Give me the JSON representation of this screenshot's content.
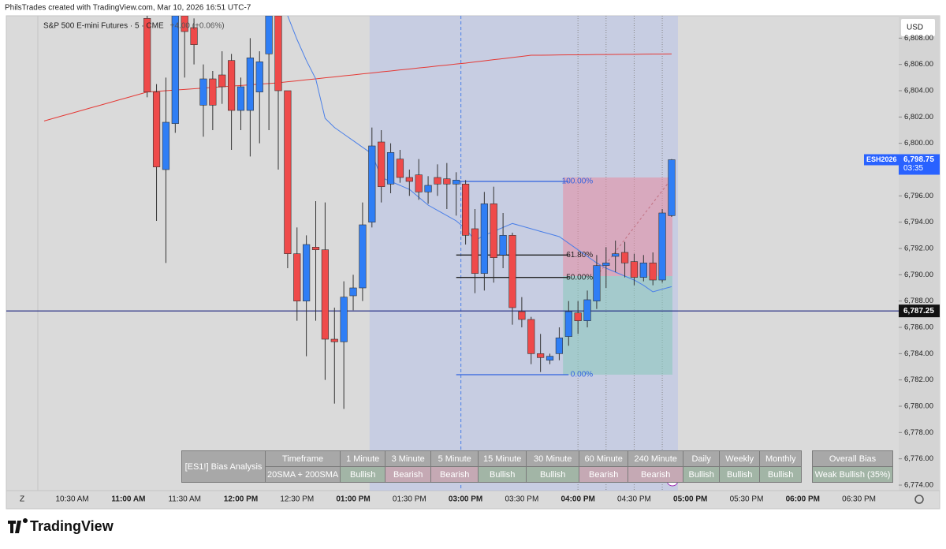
{
  "header": "PhilsTrades created with TradingView.com, Mar 10, 2026 16:51 UTC-7",
  "logo": "TradingView",
  "chart_data": {
    "type": "candlestick",
    "legend_title": "S&P 500 E-mini Futures · 5 · CME",
    "legend_change": "+4.00 (+0.06%)",
    "currency": "USD",
    "timezone_button": "Z",
    "up_color": "#2f7ef5",
    "down_color": "#ef4a4a",
    "categories": [
      null,
      null,
      null,
      "10:30 AM",
      null,
      null,
      null,
      null,
      null,
      "11:00 AM",
      null,
      null,
      null,
      null,
      null,
      "11:30 AM",
      null,
      null,
      null,
      null,
      null,
      "12:00 PM",
      null,
      null,
      null,
      null,
      null,
      "12:30 PM",
      null,
      null,
      null,
      null,
      null,
      "01:00 PM",
      null,
      null,
      null,
      null,
      null,
      "01:30 PM",
      null,
      null,
      null,
      null,
      null,
      "03:00 PM",
      null,
      null,
      null,
      null,
      null,
      "03:30 PM",
      null,
      null,
      null,
      null,
      null,
      "04:00 PM",
      null,
      null,
      null,
      null,
      null,
      "04:30 PM",
      null,
      null,
      null,
      null,
      null,
      "05:00 PM",
      null,
      null,
      null,
      null,
      null,
      "05:30 PM",
      null,
      null,
      null,
      null,
      null,
      "06:00 PM",
      null,
      null,
      null,
      null,
      null,
      "06:30 PM",
      null,
      null,
      null,
      null
    ],
    "open": [
      null,
      null,
      null,
      null,
      null,
      null,
      null,
      null,
      null,
      null,
      null,
      6809.5,
      6803.9,
      6798.0,
      6801.5,
      6809.7,
      6808.8,
      6802.9,
      6804.9,
      6805.2,
      6806.3,
      6802.5,
      6802.5,
      6803.9,
      6806.8,
      6809.7,
      6804.0,
      6791.6,
      6788.0,
      6792.1,
      6791.9,
      6785.1,
      6784.9,
      6788.4,
      6789.0,
      6794.0,
      6800.1,
      6796.9,
      6798.8,
      6797.4,
      6797.6,
      6796.3,
      6797.4,
      6797.3,
      6796.9,
      6796.9,
      6793.5,
      6790.1,
      6795.4,
      6791.5,
      6793.0,
      6787.2,
      6786.6,
      6784.0,
      6783.5,
      6784.0,
      6785.3,
      6787.1,
      6786.5,
      6788.0,
      6790.7,
      6791.4,
      6791.7,
      6791.0,
      6789.8,
      6790.9,
      6789.6,
      6794.5,
      null,
      null,
      null,
      null,
      null,
      null,
      null,
      null,
      null,
      null,
      null,
      null,
      null,
      null,
      null,
      null,
      null,
      null,
      null,
      null,
      null,
      null,
      null,
      null
    ],
    "high": [
      null,
      null,
      null,
      null,
      null,
      null,
      null,
      null,
      null,
      null,
      null,
      6809.7,
      6804.5,
      6805.0,
      6809.7,
      6809.7,
      6809.5,
      6806.0,
      6805.5,
      6807.0,
      6806.8,
      6805.0,
      6808.0,
      6807.0,
      6809.7,
      6809.7,
      6804.0,
      6793.6,
      6793.0,
      6795.6,
      6795.5,
      6787.5,
      6789.5,
      6790.0,
      6795.5,
      6801.2,
      6801.0,
      6800.0,
      6799.5,
      6798.0,
      6798.8,
      6797.5,
      6798.4,
      6798.5,
      6797.8,
      6797.2,
      6795.0,
      6796.3,
      6796.7,
      6794.7,
      6793.2,
      6788.3,
      6786.8,
      6785.5,
      6784.0,
      6786.0,
      6788.0,
      6788.0,
      6788.8,
      6791.5,
      6792.1,
      6792.6,
      6792.5,
      6791.6,
      6791.5,
      6791.7,
      6795.0,
      6798.8,
      null,
      null,
      null,
      null,
      null,
      null,
      null,
      null,
      null,
      null,
      null,
      null,
      null,
      null,
      null,
      null,
      null,
      null,
      null,
      null,
      null,
      null,
      null,
      null
    ],
    "low": [
      null,
      null,
      null,
      null,
      null,
      null,
      null,
      null,
      null,
      null,
      null,
      6803.5,
      6794.1,
      6790.9,
      6800.8,
      6805.0,
      6806.0,
      6800.5,
      6801.0,
      6803.0,
      6799.5,
      6801.0,
      6799.0,
      6800.0,
      6801.0,
      6798.0,
      6790.5,
      6786.5,
      6783.8,
      6786.5,
      6782.0,
      6780.2,
      6779.8,
      6787.3,
      6788.0,
      6793.6,
      6795.5,
      6796.2,
      6797.0,
      6796.0,
      6795.7,
      6795.4,
      6796.0,
      6795.0,
      6794.5,
      6792.3,
      6788.6,
      6788.8,
      6789.4,
      6790.5,
      6786.2,
      6786.0,
      6783.2,
      6782.6,
      6783.2,
      6783.5,
      6784.6,
      6785.5,
      6786.0,
      6787.4,
      6789.0,
      6790.2,
      6789.8,
      6789.2,
      6789.5,
      6789.2,
      6789.4,
      6794.4,
      null,
      null,
      null,
      null,
      null,
      null,
      null,
      null,
      null,
      null,
      null,
      null,
      null,
      null,
      null,
      null,
      null,
      null,
      null,
      null,
      null,
      null,
      null,
      null
    ],
    "close": [
      null,
      null,
      null,
      null,
      null,
      null,
      null,
      null,
      null,
      null,
      null,
      6803.9,
      6798.2,
      6801.6,
      6809.7,
      6808.5,
      6807.5,
      6804.9,
      6802.9,
      6804.3,
      6802.5,
      6804.3,
      6806.5,
      6806.2,
      6809.7,
      6804.0,
      6791.6,
      6788.0,
      6792.3,
      6791.9,
      6785.1,
      6784.9,
      6788.3,
      6789.0,
      6793.8,
      6799.8,
      6796.7,
      6799.3,
      6797.4,
      6797.1,
      6796.3,
      6796.8,
      6796.9,
      6796.9,
      6797.2,
      6793.0,
      6790.1,
      6795.4,
      6791.3,
      6793.0,
      6787.5,
      6786.6,
      6784.0,
      6783.7,
      6783.8,
      6785.2,
      6787.2,
      6786.5,
      6788.1,
      6790.7,
      6790.9,
      6791.6,
      6790.9,
      6789.8,
      6790.9,
      6789.6,
      6794.7,
      6798.75,
      null,
      null,
      null,
      null,
      null,
      null,
      null,
      null,
      null,
      null,
      null,
      null,
      null,
      null,
      null,
      null,
      null,
      null,
      null,
      null,
      null,
      null,
      null,
      null
    ],
    "overlays": [
      {
        "color": "#e53935",
        "values": [
          6801.7,
          6801.9,
          6802.1,
          6802.3,
          6802.5,
          6802.7,
          6802.9,
          6803.1,
          6803.3,
          6803.5,
          6803.7,
          6803.9,
          6803.95,
          6804.0,
          6804.05,
          6804.1,
          6804.15,
          6804.2,
          6804.25,
          6804.3,
          6804.35,
          6804.4,
          6804.45,
          6804.5,
          6804.55,
          6804.6,
          6804.68,
          6804.75,
          6804.83,
          6804.9,
          6804.98,
          6805.05,
          6805.13,
          6805.2,
          6805.28,
          6805.35,
          6805.43,
          6805.5,
          6805.58,
          6805.65,
          6805.73,
          6805.8,
          6805.88,
          6805.95,
          6806.03,
          6806.1,
          6806.19,
          6806.27,
          6806.36,
          6806.44,
          6806.53,
          6806.61,
          6806.7,
          6806.7,
          6806.71,
          6806.72,
          6806.73,
          6806.73,
          6806.74,
          6806.75,
          6806.75,
          6806.76,
          6806.77,
          6806.77,
          6806.78,
          6806.79,
          6806.79,
          6806.8,
          null,
          null,
          null,
          null,
          null,
          null,
          null,
          null,
          null,
          null,
          null,
          null,
          null,
          null,
          null,
          null,
          null,
          null,
          null,
          null,
          null,
          null,
          null,
          null
        ]
      },
      {
        "color": "#4a7fe8",
        "values": [
          null,
          null,
          null,
          null,
          null,
          null,
          null,
          null,
          null,
          null,
          null,
          null,
          null,
          null,
          null,
          null,
          null,
          null,
          null,
          null,
          null,
          null,
          null,
          null,
          null,
          null,
          6809.7,
          6807.9,
          6806.3,
          6804.9,
          6801.9,
          6801.2,
          6800.7,
          6800.2,
          6799.7,
          6799.2,
          6797.4,
          6797.1,
          6796.8,
          6796.5,
          6795.9,
          6795.3,
          6794.9,
          6794.5,
          6794.1,
          6793.5,
          6792.6,
          6793.0,
          6793.3,
          6793.6,
          6793.9,
          6793.7,
          6793.5,
          6793.3,
          6793.1,
          6792.9,
          6792.4,
          6791.9,
          6791.4,
          6790.9,
          6790.5,
          6790.2,
          6789.9,
          6789.6,
          6789.2,
          6788.7,
          6788.9,
          6789.1,
          null,
          null,
          null,
          null,
          null,
          null,
          null,
          null,
          null,
          null,
          null,
          null,
          null,
          null,
          null,
          null,
          null,
          null,
          null,
          null,
          null,
          null,
          null,
          null
        ]
      }
    ],
    "ylim": [
      6773.4,
      6809.7
    ],
    "yticks": [
      {
        "value": 6774,
        "label": "6,774.00"
      },
      {
        "value": 6776,
        "label": "6,776.00"
      },
      {
        "value": 6778,
        "label": "6,778.00"
      },
      {
        "value": 6780,
        "label": "6,780.00"
      },
      {
        "value": 6782,
        "label": "6,782.00"
      },
      {
        "value": 6784,
        "label": "6,784.00"
      },
      {
        "value": 6786,
        "label": "6,786.00"
      },
      {
        "value": 6788,
        "label": "6,788.00"
      },
      {
        "value": 6790,
        "label": "6,790.00"
      },
      {
        "value": 6792,
        "label": "6,792.00"
      },
      {
        "value": 6794,
        "label": "6,794.00"
      },
      {
        "value": 6796,
        "label": "6,796.00"
      },
      {
        "value": 6798,
        "label": "6,798.00"
      },
      {
        "value": 6800,
        "label": "6,800.00"
      },
      {
        "value": 6802,
        "label": "6,802.00"
      },
      {
        "value": 6804,
        "label": "6,804.00"
      },
      {
        "value": 6806,
        "label": "6,806.00"
      },
      {
        "value": 6808,
        "label": "6,808.00"
      }
    ],
    "grid": false,
    "symbol_label": "ESH2026",
    "last_price": {
      "value": 6798.75,
      "label": "6,798.75"
    },
    "countdown": "03:35",
    "hline": {
      "value": 6787.25,
      "label": "6,787.25"
    },
    "fib_levels": [
      {
        "label": "100.00%",
        "value": 6797.1,
        "color": "#2f62e0"
      },
      {
        "label": "61.80%",
        "value": 6791.5,
        "color": "#222222"
      },
      {
        "label": "50.00%",
        "value": 6789.8,
        "color": "#222222"
      },
      {
        "label": "0.00%",
        "value": 6782.4,
        "color": "#2f62e0"
      }
    ],
    "position": {
      "target": 6797.4,
      "entry": 6789.9,
      "stop": 6782.4
    }
  },
  "bias_table": {
    "title": "[ES1!] Bias Analysis",
    "row_label": "20SMA + 200SMA",
    "header": [
      "Timeframe",
      "1 Minute",
      "3 Minute",
      "5 Minute",
      "15 Minute",
      "30 Minute",
      "60 Minute",
      "240 Minute",
      "Daily",
      "Weekly",
      "Monthly"
    ],
    "cells": [
      {
        "text": "Bullish",
        "color": "#a2b5a6"
      },
      {
        "text": "Bearish",
        "color": "#c5a9b4"
      },
      {
        "text": "Bearish",
        "color": "#c5a9b4"
      },
      {
        "text": "Bullish",
        "color": "#a2b5a6"
      },
      {
        "text": "Bullish",
        "color": "#a2b5a6"
      },
      {
        "text": "Bearish",
        "color": "#c5a9b4"
      },
      {
        "text": "Bearish",
        "color": "#c5a9b4"
      },
      {
        "text": "Bullish",
        "color": "#a2b5a6"
      },
      {
        "text": "Bullish",
        "color": "#a2b5a6"
      },
      {
        "text": "Bullish",
        "color": "#a2b5a6"
      }
    ]
  },
  "overall": {
    "title": "Overall Bias",
    "value": "Weak Bullish (35%)",
    "color": "#a2b5a6"
  }
}
